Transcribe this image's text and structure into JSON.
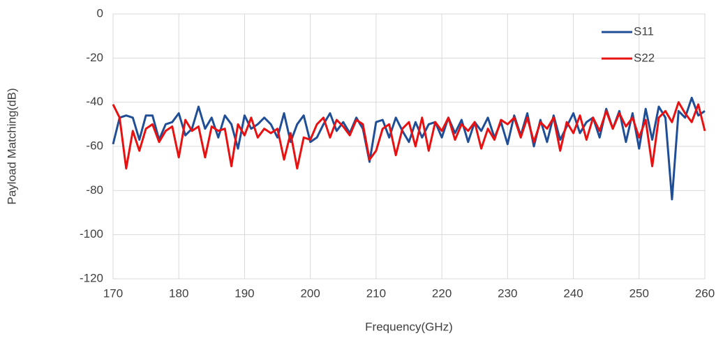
{
  "chart_data": {
    "type": "line",
    "xlabel": "Frequency(GHz)",
    "ylabel": "Payload Matching(dB)",
    "x": [
      170,
      171,
      172,
      173,
      174,
      175,
      176,
      177,
      178,
      179,
      180,
      181,
      182,
      183,
      184,
      185,
      186,
      187,
      188,
      189,
      190,
      191,
      192,
      193,
      194,
      195,
      196,
      197,
      198,
      199,
      200,
      201,
      202,
      203,
      204,
      205,
      206,
      207,
      208,
      209,
      210,
      211,
      212,
      213,
      214,
      215,
      216,
      217,
      218,
      219,
      220,
      221,
      222,
      223,
      224,
      225,
      226,
      227,
      228,
      229,
      230,
      231,
      232,
      233,
      234,
      235,
      236,
      237,
      238,
      239,
      240,
      241,
      242,
      243,
      244,
      245,
      246,
      247,
      248,
      249,
      250,
      251,
      252,
      253,
      254,
      255,
      256,
      257,
      258,
      259,
      260
    ],
    "series": [
      {
        "name": "S11",
        "color": "#1f4e96",
        "values": [
          -59,
          -47,
          -46,
          -47,
          -57,
          -46,
          -46,
          -57,
          -50,
          -49,
          -45,
          -55,
          -52,
          -42,
          -52,
          -47,
          -56,
          -46,
          -50,
          -61,
          -46,
          -52,
          -50,
          -47,
          -50,
          -56,
          -45,
          -58,
          -50,
          -46,
          -58,
          -56,
          -50,
          -45,
          -53,
          -49,
          -54,
          -47,
          -52,
          -67,
          -49,
          -48,
          -56,
          -47,
          -53,
          -58,
          -49,
          -56,
          -50,
          -49,
          -56,
          -47,
          -54,
          -48,
          -58,
          -49,
          -53,
          -47,
          -56,
          -49,
          -59,
          -46,
          -55,
          -45,
          -60,
          -48,
          -58,
          -46,
          -57,
          -51,
          -45,
          -54,
          -49,
          -47,
          -56,
          -43,
          -52,
          -44,
          -58,
          -45,
          -61,
          -43,
          -57,
          -42,
          -47,
          -84,
          -44,
          -47,
          -38,
          -46,
          -44
        ]
      },
      {
        "name": "S22",
        "color": "#e81010",
        "values": [
          -41,
          -47,
          -70,
          -53,
          -62,
          -52,
          -50,
          -58,
          -53,
          -51,
          -65,
          -48,
          -53,
          -51,
          -65,
          -51,
          -53,
          -52,
          -69,
          -50,
          -55,
          -47,
          -56,
          -52,
          -54,
          -52,
          -66,
          -54,
          -70,
          -56,
          -57,
          -50,
          -47,
          -56,
          -48,
          -51,
          -55,
          -48,
          -50,
          -66,
          -62,
          -52,
          -50,
          -64,
          -52,
          -49,
          -60,
          -47,
          -62,
          -49,
          -53,
          -47,
          -57,
          -50,
          -53,
          -49,
          -61,
          -52,
          -57,
          -48,
          -50,
          -47,
          -56,
          -47,
          -58,
          -49,
          -52,
          -47,
          -62,
          -49,
          -54,
          -46,
          -57,
          -47,
          -53,
          -44,
          -52,
          -45,
          -51,
          -47,
          -56,
          -48,
          -69,
          -47,
          -44,
          -49,
          -40,
          -45,
          -49,
          -41,
          -53
        ]
      }
    ],
    "xlim": [
      170,
      260
    ],
    "xticks": [
      170,
      180,
      190,
      200,
      210,
      220,
      230,
      240,
      250,
      260
    ],
    "ylim": [
      -120,
      0
    ],
    "yticks": [
      0,
      -20,
      -40,
      -60,
      -80,
      -100,
      -120
    ],
    "grid": true,
    "legend": "upper right"
  }
}
